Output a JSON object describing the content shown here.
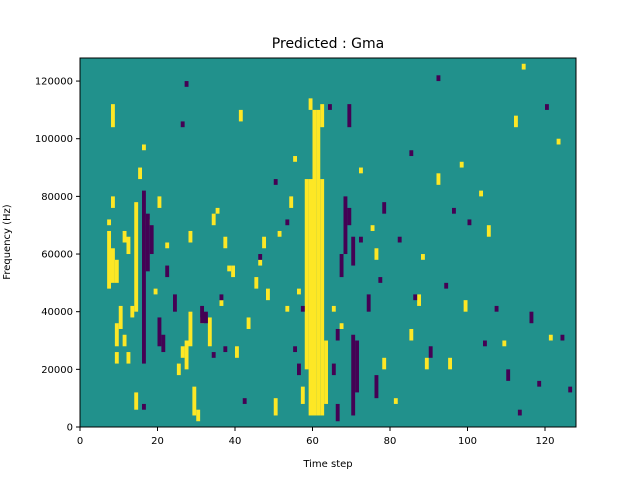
{
  "chart_data": {
    "type": "heatmap",
    "title": "Predicted : Gma",
    "xlabel": "Time step",
    "ylabel": "Frequency (Hz)",
    "xlim": [
      0,
      128
    ],
    "ylim": [
      0,
      128000
    ],
    "x_ticks": [
      0,
      20,
      40,
      60,
      80,
      100,
      120
    ],
    "x_tick_labels": [
      "0",
      "20",
      "40",
      "60",
      "80",
      "100",
      "120"
    ],
    "y_ticks": [
      0,
      20000,
      40000,
      60000,
      80000,
      100000,
      120000
    ],
    "y_tick_labels": [
      "0",
      "20000",
      "40000",
      "60000",
      "80000",
      "100000",
      "120000"
    ],
    "grid": false,
    "colormap": "viridis",
    "levels": {
      "low": -1,
      "mid": 0,
      "high": 1
    },
    "colors": {
      "background": "#21918c",
      "high": "#fde725",
      "low": "#440154"
    },
    "cell_size": {
      "time_step": 1,
      "frequency_hz": 2000
    },
    "high_cells": [
      {
        "t": 59,
        "f0": 4000,
        "f1": 86000
      },
      {
        "t": 60,
        "f0": 4000,
        "f1": 110000
      },
      {
        "t": 61,
        "f0": 4000,
        "f1": 110000
      },
      {
        "t": 62,
        "f0": 4000,
        "f1": 86000
      },
      {
        "t": 58,
        "f0": 20000,
        "f1": 86000
      },
      {
        "t": 57,
        "f0": 8000,
        "f1": 14000
      },
      {
        "t": 63,
        "f0": 8000,
        "f1": 30000
      },
      {
        "t": 62,
        "f0": 104000,
        "f1": 112000
      },
      {
        "t": 59,
        "f0": 110000,
        "f1": 114000
      },
      {
        "t": 7,
        "f0": 48000,
        "f1": 68000
      },
      {
        "t": 8,
        "f0": 50000,
        "f1": 62000
      },
      {
        "t": 9,
        "f0": 50000,
        "f1": 58000
      },
      {
        "t": 7,
        "f0": 70000,
        "f1": 72000
      },
      {
        "t": 8,
        "f0": 76000,
        "f1": 80000
      },
      {
        "t": 8,
        "f0": 104000,
        "f1": 112000
      },
      {
        "t": 9,
        "f0": 28000,
        "f1": 36000
      },
      {
        "t": 9,
        "f0": 22000,
        "f1": 26000
      },
      {
        "t": 10,
        "f0": 34000,
        "f1": 42000
      },
      {
        "t": 11,
        "f0": 64000,
        "f1": 68000
      },
      {
        "t": 12,
        "f0": 60000,
        "f1": 66000
      },
      {
        "t": 11,
        "f0": 28000,
        "f1": 32000
      },
      {
        "t": 12,
        "f0": 22000,
        "f1": 26000
      },
      {
        "t": 13,
        "f0": 38000,
        "f1": 42000
      },
      {
        "t": 14,
        "f0": 40000,
        "f1": 78000
      },
      {
        "t": 14,
        "f0": 6000,
        "f1": 12000
      },
      {
        "t": 15,
        "f0": 86000,
        "f1": 90000
      },
      {
        "t": 16,
        "f0": 96000,
        "f1": 98000
      },
      {
        "t": 17,
        "f0": 70000,
        "f1": 72000
      },
      {
        "t": 19,
        "f0": 46000,
        "f1": 48000
      },
      {
        "t": 20,
        "f0": 76000,
        "f1": 80000
      },
      {
        "t": 22,
        "f0": 62000,
        "f1": 64000
      },
      {
        "t": 25,
        "f0": 18000,
        "f1": 22000
      },
      {
        "t": 26,
        "f0": 24000,
        "f1": 28000
      },
      {
        "t": 27,
        "f0": 20000,
        "f1": 30000
      },
      {
        "t": 28,
        "f0": 28000,
        "f1": 40000
      },
      {
        "t": 28,
        "f0": 64000,
        "f1": 68000
      },
      {
        "t": 29,
        "f0": 4000,
        "f1": 14000
      },
      {
        "t": 30,
        "f0": 2000,
        "f1": 6000
      },
      {
        "t": 31,
        "f0": 36000,
        "f1": 38000
      },
      {
        "t": 33,
        "f0": 28000,
        "f1": 38000
      },
      {
        "t": 34,
        "f0": 70000,
        "f1": 74000
      },
      {
        "t": 35,
        "f0": 74000,
        "f1": 76000
      },
      {
        "t": 36,
        "f0": 42000,
        "f1": 44000
      },
      {
        "t": 37,
        "f0": 62000,
        "f1": 66000
      },
      {
        "t": 38,
        "f0": 54000,
        "f1": 56000
      },
      {
        "t": 39,
        "f0": 52000,
        "f1": 56000
      },
      {
        "t": 40,
        "f0": 24000,
        "f1": 28000
      },
      {
        "t": 41,
        "f0": 106000,
        "f1": 110000
      },
      {
        "t": 43,
        "f0": 34000,
        "f1": 38000
      },
      {
        "t": 45,
        "f0": 48000,
        "f1": 52000
      },
      {
        "t": 46,
        "f0": 56000,
        "f1": 58000
      },
      {
        "t": 47,
        "f0": 62000,
        "f1": 66000
      },
      {
        "t": 48,
        "f0": 44000,
        "f1": 48000
      },
      {
        "t": 50,
        "f0": 4000,
        "f1": 10000
      },
      {
        "t": 51,
        "f0": 66000,
        "f1": 68000
      },
      {
        "t": 53,
        "f0": 40000,
        "f1": 42000
      },
      {
        "t": 54,
        "f0": 76000,
        "f1": 80000
      },
      {
        "t": 55,
        "f0": 92000,
        "f1": 94000
      },
      {
        "t": 56,
        "f0": 46000,
        "f1": 48000
      },
      {
        "t": 65,
        "f0": 40000,
        "f1": 42000
      },
      {
        "t": 67,
        "f0": 34000,
        "f1": 36000
      },
      {
        "t": 72,
        "f0": 88000,
        "f1": 90000
      },
      {
        "t": 75,
        "f0": 68000,
        "f1": 70000
      },
      {
        "t": 76,
        "f0": 58000,
        "f1": 62000
      },
      {
        "t": 78,
        "f0": 20000,
        "f1": 24000
      },
      {
        "t": 81,
        "f0": 8000,
        "f1": 10000
      },
      {
        "t": 85,
        "f0": 30000,
        "f1": 34000
      },
      {
        "t": 87,
        "f0": 42000,
        "f1": 46000
      },
      {
        "t": 88,
        "f0": 58000,
        "f1": 60000
      },
      {
        "t": 89,
        "f0": 20000,
        "f1": 24000
      },
      {
        "t": 92,
        "f0": 84000,
        "f1": 88000
      },
      {
        "t": 95,
        "f0": 20000,
        "f1": 24000
      },
      {
        "t": 98,
        "f0": 90000,
        "f1": 92000
      },
      {
        "t": 99,
        "f0": 40000,
        "f1": 44000
      },
      {
        "t": 103,
        "f0": 80000,
        "f1": 82000
      },
      {
        "t": 105,
        "f0": 66000,
        "f1": 70000
      },
      {
        "t": 109,
        "f0": 28000,
        "f1": 30000
      },
      {
        "t": 112,
        "f0": 104000,
        "f1": 108000
      },
      {
        "t": 114,
        "f0": 124000,
        "f1": 126000
      },
      {
        "t": 121,
        "f0": 30000,
        "f1": 32000
      },
      {
        "t": 123,
        "f0": 98000,
        "f1": 100000
      }
    ],
    "low_cells": [
      {
        "t": 16,
        "f0": 22000,
        "f1": 82000
      },
      {
        "t": 17,
        "f0": 54000,
        "f1": 74000
      },
      {
        "t": 18,
        "f0": 60000,
        "f1": 70000
      },
      {
        "t": 16,
        "f0": 6000,
        "f1": 8000
      },
      {
        "t": 20,
        "f0": 28000,
        "f1": 38000
      },
      {
        "t": 21,
        "f0": 26000,
        "f1": 32000
      },
      {
        "t": 22,
        "f0": 52000,
        "f1": 56000
      },
      {
        "t": 24,
        "f0": 40000,
        "f1": 46000
      },
      {
        "t": 27,
        "f0": 118000,
        "f1": 120000
      },
      {
        "t": 26,
        "f0": 104000,
        "f1": 106000
      },
      {
        "t": 31,
        "f0": 36000,
        "f1": 42000
      },
      {
        "t": 32,
        "f0": 36000,
        "f1": 40000
      },
      {
        "t": 34,
        "f0": 24000,
        "f1": 26000
      },
      {
        "t": 36,
        "f0": 44000,
        "f1": 46000
      },
      {
        "t": 37,
        "f0": 26000,
        "f1": 28000
      },
      {
        "t": 42,
        "f0": 8000,
        "f1": 10000
      },
      {
        "t": 46,
        "f0": 58000,
        "f1": 60000
      },
      {
        "t": 50,
        "f0": 84000,
        "f1": 86000
      },
      {
        "t": 53,
        "f0": 70000,
        "f1": 72000
      },
      {
        "t": 55,
        "f0": 26000,
        "f1": 28000
      },
      {
        "t": 56,
        "f0": 18000,
        "f1": 22000
      },
      {
        "t": 57,
        "f0": 40000,
        "f1": 42000
      },
      {
        "t": 64,
        "f0": 110000,
        "f1": 112000
      },
      {
        "t": 65,
        "f0": 18000,
        "f1": 22000
      },
      {
        "t": 66,
        "f0": 30000,
        "f1": 34000
      },
      {
        "t": 67,
        "f0": 52000,
        "f1": 60000
      },
      {
        "t": 68,
        "f0": 60000,
        "f1": 80000
      },
      {
        "t": 69,
        "f0": 70000,
        "f1": 76000
      },
      {
        "t": 70,
        "f0": 4000,
        "f1": 32000
      },
      {
        "t": 71,
        "f0": 12000,
        "f1": 30000
      },
      {
        "t": 70,
        "f0": 56000,
        "f1": 66000
      },
      {
        "t": 69,
        "f0": 104000,
        "f1": 112000
      },
      {
        "t": 66,
        "f0": 2000,
        "f1": 8000
      },
      {
        "t": 72,
        "f0": 64000,
        "f1": 66000
      },
      {
        "t": 74,
        "f0": 40000,
        "f1": 46000
      },
      {
        "t": 76,
        "f0": 10000,
        "f1": 18000
      },
      {
        "t": 77,
        "f0": 50000,
        "f1": 52000
      },
      {
        "t": 78,
        "f0": 74000,
        "f1": 78000
      },
      {
        "t": 82,
        "f0": 64000,
        "f1": 66000
      },
      {
        "t": 85,
        "f0": 94000,
        "f1": 96000
      },
      {
        "t": 86,
        "f0": 44000,
        "f1": 46000
      },
      {
        "t": 90,
        "f0": 24000,
        "f1": 28000
      },
      {
        "t": 92,
        "f0": 120000,
        "f1": 122000
      },
      {
        "t": 94,
        "f0": 48000,
        "f1": 50000
      },
      {
        "t": 96,
        "f0": 74000,
        "f1": 76000
      },
      {
        "t": 100,
        "f0": 70000,
        "f1": 72000
      },
      {
        "t": 104,
        "f0": 28000,
        "f1": 30000
      },
      {
        "t": 107,
        "f0": 40000,
        "f1": 42000
      },
      {
        "t": 110,
        "f0": 16000,
        "f1": 20000
      },
      {
        "t": 113,
        "f0": 4000,
        "f1": 6000
      },
      {
        "t": 116,
        "f0": 36000,
        "f1": 40000
      },
      {
        "t": 118,
        "f0": 14000,
        "f1": 16000
      },
      {
        "t": 120,
        "f0": 110000,
        "f1": 112000
      },
      {
        "t": 124,
        "f0": 30000,
        "f1": 32000
      },
      {
        "t": 126,
        "f0": 12000,
        "f1": 14000
      }
    ]
  }
}
